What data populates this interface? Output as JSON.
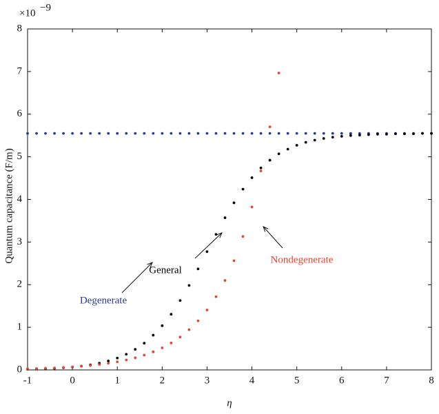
{
  "chart_data": {
    "type": "scatter",
    "x_label": "η",
    "y_label": "Quantum capacitance (F/m)",
    "y_offset_text": {
      "base": "×10",
      "exponent": "−9"
    },
    "xlim": [
      -1,
      8
    ],
    "xticks": [
      -1,
      0,
      1,
      2,
      3,
      4,
      5,
      6,
      7,
      8
    ],
    "ylim": [
      0,
      8
    ],
    "yticks": [
      0,
      1,
      2,
      3,
      4,
      5,
      6,
      7,
      8
    ],
    "grid": false,
    "x": [
      -1,
      -0.8,
      -0.6,
      -0.4,
      -0.2,
      0,
      0.2,
      0.4,
      0.6,
      0.8,
      1,
      1.2,
      1.4,
      1.6,
      1.8,
      2,
      2.2,
      2.4,
      2.6,
      2.8,
      3,
      3.2,
      3.4,
      3.6,
      3.8,
      4,
      4.2,
      4.4,
      4.6,
      4.8,
      5,
      5.2,
      5.4,
      5.6,
      5.8,
      6,
      6.2,
      6.4,
      6.6,
      6.8,
      7,
      7.2,
      7.4,
      7.6,
      7.8,
      8
    ],
    "series": [
      {
        "name": "Degenerate",
        "color": "#2b3990",
        "values": [
          5.55,
          5.55,
          5.55,
          5.55,
          5.55,
          5.55,
          5.55,
          5.55,
          5.55,
          5.55,
          5.55,
          5.55,
          5.55,
          5.55,
          5.55,
          5.55,
          5.55,
          5.55,
          5.55,
          5.55,
          5.55,
          5.55,
          5.55,
          5.55,
          5.55,
          5.55,
          5.55,
          5.55,
          5.55,
          5.55,
          5.55,
          5.55,
          5.55,
          5.55,
          5.55,
          5.55,
          5.55,
          5.55,
          5.55,
          5.55,
          5.55,
          5.55,
          5.55,
          5.55,
          5.55,
          5.55
        ]
      },
      {
        "name": "General",
        "color": "#000000",
        "values": [
          0.016,
          0.021,
          0.028,
          0.037,
          0.05,
          0.067,
          0.089,
          0.119,
          0.158,
          0.209,
          0.279,
          0.368,
          0.483,
          0.627,
          0.815,
          1.037,
          1.306,
          1.628,
          1.982,
          2.37,
          2.775,
          3.18,
          3.57,
          3.92,
          4.24,
          4.51,
          4.74,
          4.92,
          5.07,
          5.18,
          5.27,
          5.34,
          5.39,
          5.43,
          5.46,
          5.48,
          5.5,
          5.51,
          5.52,
          5.53,
          5.53,
          5.54,
          5.54,
          5.54,
          5.55,
          5.55
        ]
      },
      {
        "name": "Nondegenerate",
        "color": "#e8432f",
        "values": [
          0.026,
          0.031,
          0.038,
          0.047,
          0.057,
          0.07,
          0.085,
          0.104,
          0.127,
          0.156,
          0.19,
          0.232,
          0.284,
          0.347,
          0.423,
          0.517,
          0.632,
          0.772,
          0.943,
          1.151,
          1.406,
          1.717,
          2.098,
          2.562,
          3.13,
          3.822,
          4.669,
          5.703,
          6.966,
          null,
          null,
          null,
          null,
          null,
          null,
          null,
          null,
          null,
          null,
          null,
          null,
          null,
          null,
          null,
          null,
          null
        ]
      }
    ]
  }
}
